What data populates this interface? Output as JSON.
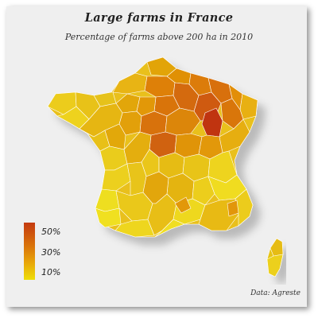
{
  "title": "Large farms in France",
  "subtitle": "Percentage of farms above 200 ha in 2010",
  "source": "Data: Agreste",
  "legend": {
    "labels": [
      "50%",
      "30%",
      "10%"
    ],
    "colors": [
      "#c43a10",
      "#d9720a",
      "#eede08"
    ]
  },
  "colors": {
    "background": "#efefef",
    "low": "#eede08",
    "mid": "#e8a608",
    "high": "#c43a10"
  }
}
